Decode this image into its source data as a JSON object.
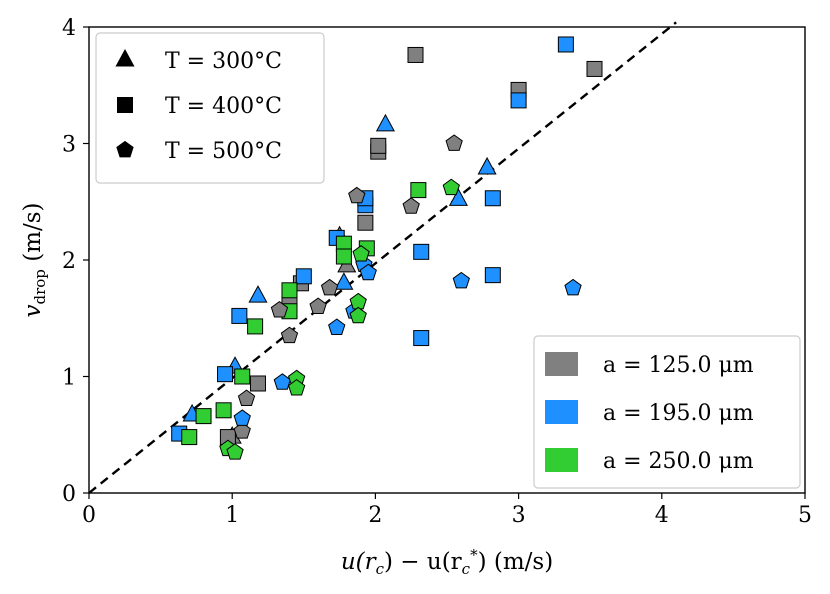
{
  "chart_data": {
    "type": "scatter",
    "title": "",
    "xlabel_parts": [
      "u(r",
      "c",
      ") − u(r",
      "c",
      "*",
      ") (m/s)"
    ],
    "ylabel_parts": [
      "v",
      "drop",
      " (m/s)"
    ],
    "xlim": [
      0,
      5
    ],
    "ylim": [
      0,
      4
    ],
    "xticks": [
      0,
      1,
      2,
      3,
      4,
      5
    ],
    "yticks": [
      0,
      1,
      2,
      3,
      4
    ],
    "grid": false,
    "reference_line": {
      "style": "dashed",
      "color": "#000000",
      "from": [
        0,
        0
      ],
      "to": [
        4.1,
        4.04
      ]
    },
    "colors": {
      "125": "#808080",
      "195": "#1e90ff",
      "250": "#32cd32"
    },
    "marker_legend": {
      "position": "top-left",
      "entries": [
        {
          "marker": "triangle",
          "text": "T = 300°C"
        },
        {
          "marker": "square",
          "text": "T = 400°C"
        },
        {
          "marker": "pentagon",
          "text": "T = 500°C"
        }
      ]
    },
    "color_legend": {
      "position": "bottom-right",
      "entries": [
        {
          "color": "#808080",
          "text": "a = 125.0 μm"
        },
        {
          "color": "#1e90ff",
          "text": "a = 195.0 μm"
        },
        {
          "color": "#32cd32",
          "text": "a = 250.0 μm"
        }
      ]
    },
    "series": [
      {
        "name": "a=125.0, T=300°C",
        "a": 125,
        "marker": "triangle",
        "color": "#808080",
        "points": [
          [
            1.0,
            0.48
          ],
          [
            1.75,
            2.2
          ],
          [
            1.8,
            1.95
          ]
        ]
      },
      {
        "name": "a=195.0, T=300°C",
        "a": 195,
        "marker": "triangle",
        "color": "#1e90ff",
        "points": [
          [
            0.72,
            0.67
          ],
          [
            1.02,
            1.08
          ],
          [
            1.18,
            1.69
          ],
          [
            1.78,
            1.8
          ],
          [
            2.07,
            3.16
          ],
          [
            2.58,
            2.52
          ],
          [
            2.78,
            2.79
          ]
        ]
      },
      {
        "name": "a=250.0, T=300°C",
        "a": 250,
        "marker": "triangle",
        "color": "#32cd32",
        "points": []
      },
      {
        "name": "a=125.0, T=400°C",
        "a": 125,
        "marker": "square",
        "color": "#808080",
        "points": [
          [
            0.97,
            0.48
          ],
          [
            1.18,
            0.94
          ],
          [
            1.4,
            1.62
          ],
          [
            1.48,
            1.8
          ],
          [
            1.93,
            2.32
          ],
          [
            2.02,
            2.93
          ],
          [
            2.02,
            2.98
          ],
          [
            2.28,
            3.76
          ],
          [
            3.0,
            3.46
          ],
          [
            3.53,
            3.64
          ]
        ]
      },
      {
        "name": "a=195.0, T=400°C",
        "a": 195,
        "marker": "square",
        "color": "#1e90ff",
        "points": [
          [
            0.63,
            0.51
          ],
          [
            0.95,
            1.02
          ],
          [
            1.05,
            1.52
          ],
          [
            1.5,
            1.86
          ],
          [
            1.73,
            2.19
          ],
          [
            1.93,
            2.47
          ],
          [
            1.93,
            2.53
          ],
          [
            2.32,
            2.07
          ],
          [
            2.32,
            1.33
          ],
          [
            2.82,
            1.87
          ],
          [
            2.82,
            2.53
          ],
          [
            3.0,
            3.37
          ],
          [
            3.33,
            3.85
          ]
        ]
      },
      {
        "name": "a=250.0, T=400°C",
        "a": 250,
        "marker": "square",
        "color": "#32cd32",
        "points": [
          [
            0.7,
            0.48
          ],
          [
            0.8,
            0.66
          ],
          [
            0.94,
            0.71
          ],
          [
            1.07,
            1.0
          ],
          [
            1.16,
            1.43
          ],
          [
            1.4,
            1.74
          ],
          [
            1.4,
            1.56
          ],
          [
            1.78,
            2.14
          ],
          [
            1.78,
            2.03
          ],
          [
            1.94,
            2.1
          ],
          [
            2.3,
            2.6
          ]
        ]
      },
      {
        "name": "a=125.0, T=500°C",
        "a": 125,
        "marker": "pentagon",
        "color": "#808080",
        "points": [
          [
            1.07,
            0.53
          ],
          [
            1.1,
            0.81
          ],
          [
            1.33,
            1.57
          ],
          [
            1.4,
            1.35
          ],
          [
            1.6,
            1.6
          ],
          [
            1.68,
            1.76
          ],
          [
            1.87,
            2.55
          ],
          [
            2.25,
            2.46
          ],
          [
            2.55,
            3.0
          ]
        ]
      },
      {
        "name": "a=195.0, T=500°C",
        "a": 195,
        "marker": "pentagon",
        "color": "#1e90ff",
        "points": [
          [
            1.07,
            0.64
          ],
          [
            1.35,
            0.95
          ],
          [
            1.73,
            1.42
          ],
          [
            1.85,
            1.56
          ],
          [
            1.92,
            1.96
          ],
          [
            1.95,
            1.89
          ],
          [
            2.6,
            1.82
          ],
          [
            3.38,
            1.76
          ]
        ]
      },
      {
        "name": "a=250.0, T=500°C",
        "a": 250,
        "marker": "pentagon",
        "color": "#32cd32",
        "points": [
          [
            0.97,
            0.38
          ],
          [
            1.02,
            0.35
          ],
          [
            1.45,
            0.98
          ],
          [
            1.45,
            0.9
          ],
          [
            1.88,
            1.64
          ],
          [
            1.88,
            1.52
          ],
          [
            1.9,
            2.05
          ],
          [
            2.53,
            2.62
          ]
        ]
      }
    ]
  }
}
